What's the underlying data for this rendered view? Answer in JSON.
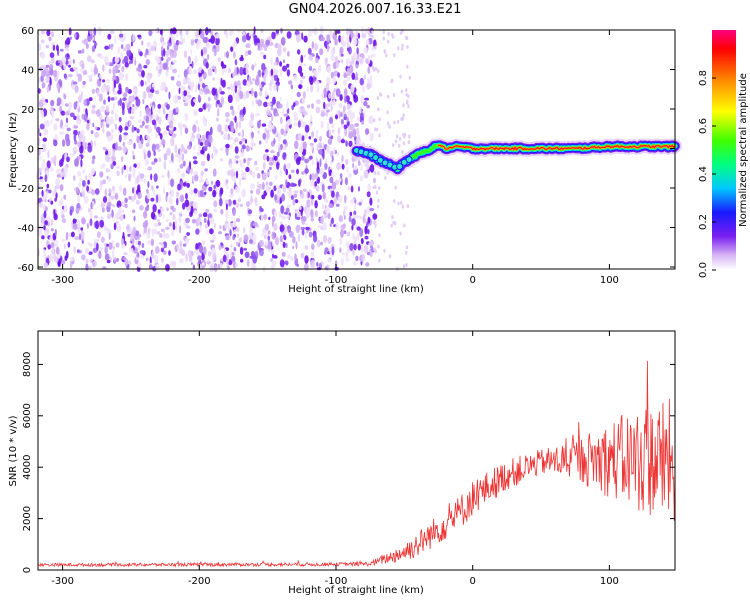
{
  "title": "GN04.2026.007.16.33.E21",
  "chart_data": [
    {
      "type": "heatmap",
      "xlabel": "Height of straight line (km)",
      "ylabel": "Frequency (Hz)",
      "xlim": [
        -318,
        148
      ],
      "ylim": [
        -61,
        60
      ],
      "xticks": [
        -300,
        -200,
        -100,
        0,
        100
      ],
      "yticks": [
        -60,
        -40,
        -20,
        0,
        20,
        40,
        60
      ],
      "noise_region_x": [
        -318,
        -75
      ],
      "ridge": {
        "description": "narrowband carrier near 0 Hz",
        "x": [
          -85,
          -75,
          -65,
          -55,
          -50,
          -45,
          -40,
          -30,
          -25,
          -20,
          -10,
          0,
          25,
          50,
          75,
          100,
          125,
          148
        ],
        "y": [
          -1,
          -3,
          -7,
          -10,
          -7,
          -5,
          -3,
          0,
          2,
          0,
          1,
          0,
          0,
          0,
          0,
          1,
          1,
          1
        ]
      },
      "colorbar": {
        "label": "Normalized spectral amplitude",
        "ticks": [
          0.0,
          0.2,
          0.4,
          0.6,
          0.8
        ],
        "range": [
          0,
          1
        ]
      }
    },
    {
      "type": "line",
      "xlabel": "Height of straight line (km)",
      "ylabel": "SNR (10 * v/v)",
      "xlim": [
        -318,
        148
      ],
      "ylim": [
        0,
        9300
      ],
      "xticks": [
        -300,
        -200,
        -100,
        0,
        100
      ],
      "yticks": [
        0,
        2000,
        4000,
        6000,
        8000
      ],
      "series": [
        {
          "name": "SNR",
          "color": "#ee3333",
          "envelope_x": [
            -318,
            -100,
            -75,
            -60,
            -50,
            -40,
            -25,
            -10,
            0,
            25,
            50,
            75,
            100,
            125,
            148
          ],
          "envelope_y": [
            200,
            220,
            240,
            500,
            700,
            1000,
            1600,
            2200,
            2800,
            3700,
            4200,
            4300,
            4300,
            4300,
            4200
          ],
          "noise_amplitude_y": [
            60,
            70,
            80,
            250,
            400,
            500,
            600,
            700,
            700,
            600,
            500,
            800,
            1500,
            2200,
            2500
          ]
        }
      ]
    }
  ]
}
